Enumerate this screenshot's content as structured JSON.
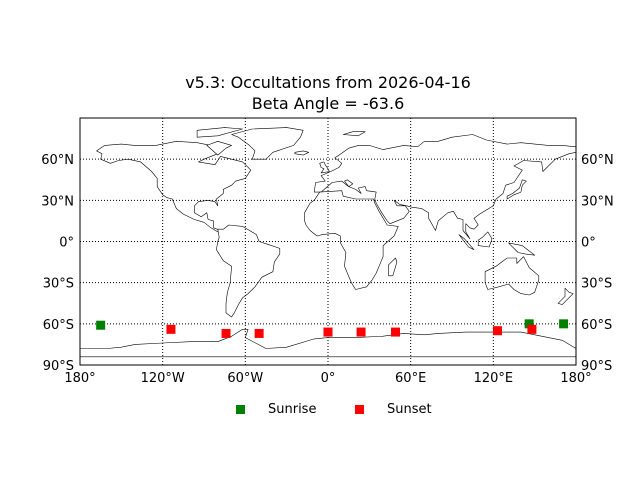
{
  "title": "v5.3: Occultations from 2026-04-16",
  "subtitle": "Beta Angle = -63.6",
  "map": {
    "projection": "equirectangular",
    "lon_range": [
      -180,
      180
    ],
    "lat_range": [
      -90,
      90
    ],
    "grid": true,
    "grid_style": "dotted",
    "lat_ticks": [
      {
        "value": 60,
        "label": "60°N"
      },
      {
        "value": 30,
        "label": "30°N"
      },
      {
        "value": 0,
        "label": "0°"
      },
      {
        "value": -30,
        "label": "30°S"
      },
      {
        "value": -60,
        "label": "60°S"
      },
      {
        "value": -90,
        "label": "90°S"
      }
    ],
    "lon_ticks": [
      {
        "value": -180,
        "label": "180°"
      },
      {
        "value": -120,
        "label": "120°W"
      },
      {
        "value": -60,
        "label": "60°W"
      },
      {
        "value": 0,
        "label": "0°"
      },
      {
        "value": 60,
        "label": "60°E"
      },
      {
        "value": 120,
        "label": "120°E"
      },
      {
        "value": 180,
        "label": "180°"
      }
    ],
    "coastline_color": "#000000"
  },
  "chart_data": {
    "type": "scatter",
    "xlabel": "",
    "ylabel": "",
    "xlim": [
      -180,
      180
    ],
    "ylim": [
      -90,
      90
    ],
    "grid": true,
    "legend_position": "bottom-center",
    "series": [
      {
        "name": "Sunrise",
        "color": "#008000",
        "marker": "square",
        "points": [
          {
            "lon": -165,
            "lat": -61
          },
          {
            "lon": 146,
            "lat": -60
          },
          {
            "lon": 171,
            "lat": -60
          }
        ]
      },
      {
        "name": "Sunset",
        "color": "#ff0000",
        "marker": "square",
        "points": [
          {
            "lon": -114,
            "lat": -64
          },
          {
            "lon": -74,
            "lat": -67
          },
          {
            "lon": -50,
            "lat": -67
          },
          {
            "lon": 0,
            "lat": -66
          },
          {
            "lon": 24,
            "lat": -66
          },
          {
            "lon": 49,
            "lat": -66
          },
          {
            "lon": 123,
            "lat": -65
          },
          {
            "lon": 148,
            "lat": -64
          }
        ]
      }
    ]
  }
}
